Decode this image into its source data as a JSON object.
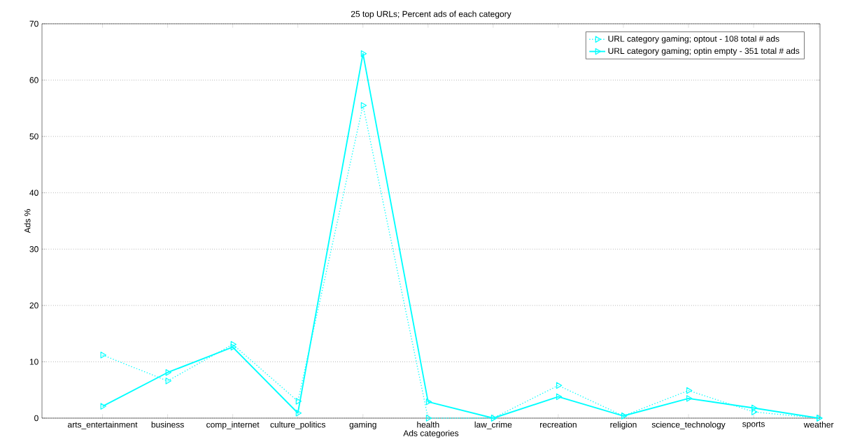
{
  "chart_data": {
    "type": "line",
    "title": "25 top URLs; Percent ads of each category",
    "xlabel": "Ads categories",
    "ylabel": "Ads %",
    "categories": [
      "arts_entertainment",
      "business",
      "comp_internet",
      "culture_politics",
      "gaming",
      "health",
      "law_crime",
      "recreation",
      "religion",
      "science_technology",
      "sports",
      "weather"
    ],
    "series": [
      {
        "name": "URL category gaming; optout - 108 total # ads",
        "color": "#00ffff",
        "line_style": "dotted",
        "values": [
          11.2,
          6.6,
          13.1,
          3.0,
          55.5,
          0,
          0,
          5.8,
          0.4,
          4.9,
          1.1,
          0
        ]
      },
      {
        "name": "URL category gaming; optin empty - 351 total # ads",
        "color": "#00ffff",
        "line_style": "solid",
        "values": [
          2.1,
          8.1,
          12.6,
          0.9,
          64.7,
          2.9,
          0,
          3.8,
          0.4,
          3.5,
          1.8,
          0
        ]
      }
    ],
    "ylim": [
      0,
      70
    ],
    "yticks": [
      0,
      10,
      20,
      30,
      40,
      50,
      60,
      70
    ],
    "grid": "y",
    "legend": "top right",
    "marker": "triangle"
  }
}
